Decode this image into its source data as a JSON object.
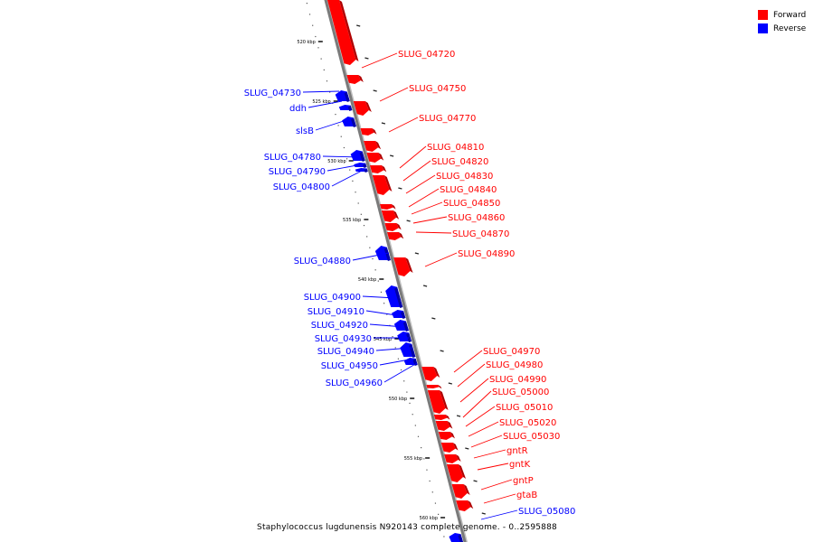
{
  "legend": {
    "forward": {
      "label": "Forward",
      "color": "#ff0000"
    },
    "reverse": {
      "label": "Reverse",
      "color": "#0000ff"
    }
  },
  "footer": "Staphylococcus lugdunensis N920143 complete genome. - 0..2595888",
  "scale": {
    "unit": "kbp",
    "ticks": [
      "520 kbp",
      "525 kbp",
      "530 kbp",
      "535 kbp",
      "540 kbp",
      "545 kbp",
      "550 kbp",
      "555 kbp",
      "560 kbp"
    ]
  },
  "genes": {
    "forward": [
      "SLUG_04720",
      "SLUG_04750",
      "SLUG_04770",
      "SLUG_04810",
      "SLUG_04820",
      "SLUG_04830",
      "SLUG_04840",
      "SLUG_04850",
      "SLUG_04860",
      "SLUG_04870",
      "SLUG_04890",
      "SLUG_04970",
      "SLUG_04980",
      "SLUG_04990",
      "SLUG_05000",
      "SLUG_05010",
      "SLUG_05020",
      "SLUG_05030",
      "gntR",
      "gntK",
      "gntP",
      "gtaB"
    ],
    "reverse": [
      "SLUG_04730",
      "ddh",
      "slsB",
      "SLUG_04780",
      "SLUG_04790",
      "SLUG_04800",
      "SLUG_04880",
      "SLUG_04900",
      "SLUG_04910",
      "SLUG_04920",
      "SLUG_04930",
      "SLUG_04940",
      "SLUG_04950",
      "SLUG_04960",
      "SLUG_05080"
    ]
  }
}
